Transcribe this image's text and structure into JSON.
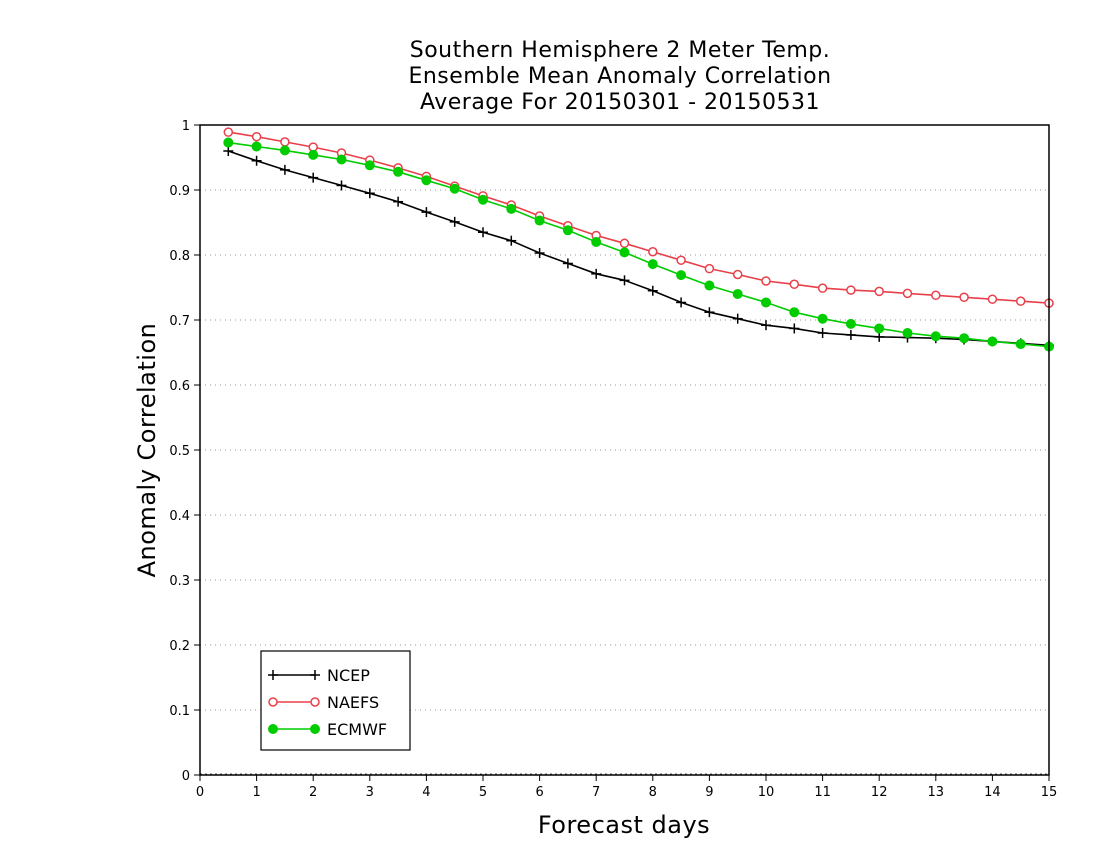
{
  "chart_data": {
    "type": "line",
    "title_lines": [
      "Southern Hemisphere 2 Meter Temp.",
      "Ensemble Mean Anomaly Correlation",
      "Average For 20150301 - 20150531"
    ],
    "xlabel": "Forecast days",
    "ylabel": "Anomaly Correlation",
    "xlim": [
      0,
      15
    ],
    "ylim": [
      0,
      1
    ],
    "xticks": [
      0,
      1,
      2,
      3,
      4,
      5,
      6,
      7,
      8,
      9,
      10,
      11,
      12,
      13,
      14,
      15
    ],
    "yticks": [
      0,
      0.1,
      0.2,
      0.3,
      0.4,
      0.5,
      0.6,
      0.7,
      0.8,
      0.9,
      1
    ],
    "ytick_labels": [
      "0",
      "0.1",
      "0.2",
      "0.3",
      "0.4",
      "0.5",
      "0.6",
      "0.7",
      "0.8",
      "0.9",
      "1"
    ],
    "grid": "horizontal-dotted",
    "legend_position": "bottom-left",
    "x": [
      0.5,
      1,
      1.5,
      2,
      2.5,
      3,
      3.5,
      4,
      4.5,
      5,
      5.5,
      6,
      6.5,
      7,
      7.5,
      8,
      8.5,
      9,
      9.5,
      10,
      10.5,
      11,
      11.5,
      12,
      12.5,
      13,
      13.5,
      14,
      14.5,
      15
    ],
    "series": [
      {
        "name": "NCEP",
        "color": "#000000",
        "marker": "plus",
        "values": [
          0.96,
          0.945,
          0.931,
          0.919,
          0.907,
          0.895,
          0.882,
          0.866,
          0.851,
          0.835,
          0.822,
          0.803,
          0.787,
          0.771,
          0.761,
          0.745,
          0.727,
          0.712,
          0.702,
          0.692,
          0.687,
          0.68,
          0.677,
          0.674,
          0.673,
          0.672,
          0.67,
          0.667,
          0.664,
          0.661
        ]
      },
      {
        "name": "NAEFS",
        "color": "#e8404a",
        "marker": "open-circle",
        "values": [
          0.989,
          0.982,
          0.974,
          0.966,
          0.957,
          0.946,
          0.934,
          0.921,
          0.906,
          0.891,
          0.877,
          0.86,
          0.845,
          0.83,
          0.818,
          0.805,
          0.792,
          0.779,
          0.77,
          0.76,
          0.755,
          0.749,
          0.746,
          0.744,
          0.741,
          0.738,
          0.735,
          0.732,
          0.729,
          0.726
        ]
      },
      {
        "name": "ECMWF",
        "color": "#00cc00",
        "marker": "filled-circle",
        "values": [
          0.973,
          0.967,
          0.961,
          0.954,
          0.947,
          0.938,
          0.928,
          0.915,
          0.902,
          0.885,
          0.871,
          0.853,
          0.838,
          0.82,
          0.804,
          0.786,
          0.769,
          0.753,
          0.74,
          0.727,
          0.712,
          0.702,
          0.694,
          0.687,
          0.68,
          0.675,
          0.672,
          0.667,
          0.663,
          0.659
        ]
      }
    ]
  }
}
